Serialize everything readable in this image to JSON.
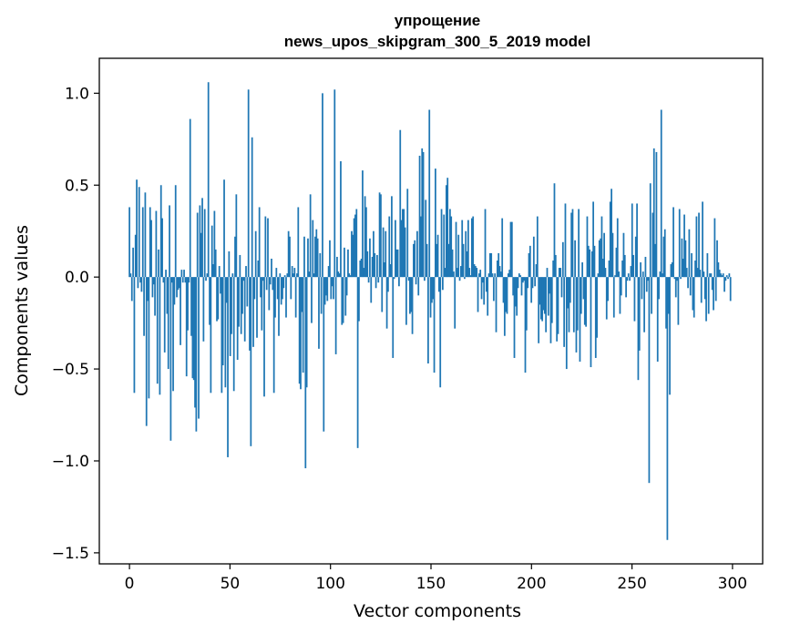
{
  "chart_data": {
    "type": "bar",
    "title": "упрощение",
    "subtitle": "news_upos_skipgram_300_5_2019 model",
    "xlabel": "Vector components",
    "ylabel": "Components values",
    "xlim": [
      -15,
      315
    ],
    "ylim": [
      -1.56,
      1.19
    ],
    "xticks": [
      0,
      50,
      100,
      150,
      200,
      250,
      300
    ],
    "xtick_labels": [
      "0",
      "50",
      "100",
      "150",
      "200",
      "250",
      "300"
    ],
    "yticks": [
      -1.5,
      -1.0,
      -0.5,
      0.0,
      0.5,
      1.0
    ],
    "ytick_labels": [
      "−1.5",
      "−1.0",
      "−0.5",
      "0.0",
      "0.5",
      "1.0"
    ],
    "bar_color": "#1f77b4",
    "grid": false,
    "series": [
      {
        "name": "упрощение",
        "values": [
          0.38,
          0.02,
          -0.13,
          0.16,
          -0.63,
          0.23,
          0.53,
          -0.06,
          0.49,
          -0.03,
          -0.08,
          0.38,
          -0.32,
          0.46,
          -0.81,
          -0.13,
          -0.66,
          0.38,
          0.31,
          -0.11,
          -0.04,
          -0.21,
          0.36,
          -0.58,
          0.15,
          -0.64,
          0.5,
          0.32,
          -0.03,
          -0.41,
          0.04,
          -0.2,
          -0.5,
          0.39,
          -0.89,
          -0.03,
          -0.62,
          -0.15,
          0.5,
          -0.11,
          -0.07,
          -0.06,
          -0.37,
          0.04,
          -0.03,
          0.04,
          -0.03,
          -0.54,
          -0.29,
          -0.03,
          0.86,
          -0.32,
          -0.55,
          -0.56,
          -0.71,
          -0.84,
          0.35,
          -0.77,
          0.39,
          0.24,
          0.43,
          -0.35,
          0.37,
          -0.02,
          0.02,
          1.06,
          -0.26,
          -0.63,
          0.28,
          0.07,
          0.36,
          0.15,
          -0.24,
          -0.23,
          0.06,
          -0.09,
          -0.63,
          -0.48,
          0.53,
          -0.6,
          -0.14,
          -0.98,
          0.14,
          -0.43,
          -0.31,
          0.02,
          -0.62,
          0.22,
          0.45,
          -0.45,
          -0.27,
          0.12,
          -0.31,
          -0.2,
          -0.02,
          -0.35,
          0.06,
          -0.16,
          1.02,
          -0.4,
          -0.92,
          0.76,
          -0.38,
          -0.12,
          0.25,
          -0.33,
          0.09,
          0.38,
          -0.11,
          -0.29,
          -0.02,
          -0.65,
          0.33,
          -0.07,
          0.32,
          -0.18,
          -0.04,
          0.1,
          -0.07,
          -0.63,
          -0.22,
          0.05,
          -0.12,
          -0.32,
          0.02,
          -0.15,
          -0.12,
          -0.06,
          0.01,
          -0.22,
          0.02,
          0.25,
          0.22,
          -0.12,
          0.06,
          0.02,
          0.05,
          -0.22,
          0.02,
          0.38,
          -0.58,
          -0.61,
          -0.19,
          -0.52,
          0.22,
          -1.04,
          -0.6,
          0.21,
          0.03,
          0.45,
          -0.25,
          0.31,
          0.02,
          0.22,
          0.26,
          0.21,
          -0.39,
          0.13,
          -0.2,
          1.0,
          -0.84,
          -0.15,
          -0.1,
          -0.13,
          0.06,
          0.2,
          -0.12,
          -0.05,
          -0.12,
          1.02,
          -0.42,
          0.11,
          0.03,
          0.02,
          0.63,
          -0.26,
          -0.25,
          0.16,
          -0.21,
          -0.1,
          0.15,
          0.02,
          0.01,
          0.25,
          0.23,
          0.32,
          0.34,
          0.37,
          -0.93,
          -0.24,
          0.09,
          0.1,
          0.58,
          0.05,
          0.44,
          0.38,
          0.14,
          -0.03,
          0.21,
          -0.14,
          0.11,
          0.25,
          0.13,
          -0.06,
          0.12,
          -0.03,
          0.46,
          0.45,
          -0.19,
          0.27,
          0.08,
          0.25,
          -0.28,
          -0.08,
          0.33,
          0.07,
          0.44,
          -0.44,
          -0.01,
          0.31,
          0.15,
          0.15,
          -0.05,
          0.8,
          0.31,
          0.37,
          0.37,
          0.27,
          -0.26,
          0.48,
          -0.02,
          -0.2,
          -0.19,
          -0.31,
          0.18,
          0.2,
          -0.04,
          0.25,
          -0.1,
          0.66,
          0.33,
          0.7,
          0.68,
          -0.02,
          0.42,
          0.18,
          -0.47,
          0.91,
          -0.22,
          -0.14,
          -0.12,
          -0.52,
          0.59,
          0.18,
          0.23,
          -0.08,
          -0.6,
          0.37,
          -0.07,
          0.34,
          0.05,
          0.5,
          0.54,
          0.18,
          0.37,
          0.33,
          0.15,
          0.03,
          -0.28,
          0.3,
          0.05,
          0.23,
          -0.02,
          0.06,
          0.31,
          0.18,
          -0.01,
          0.25,
          0.14,
          0.31,
          0.05,
          0.01,
          0.32,
          0.33,
          0.07,
          0.06,
          0.05,
          -0.19,
          0.02,
          0.04,
          -0.12,
          -0.03,
          -0.15,
          0.37,
          -0.08,
          -0.21,
          0.02,
          0.13,
          0.13,
          0.02,
          -0.13,
          0.02,
          -0.3,
          0.09,
          0.13,
          0.06,
          0.03,
          0.32,
          -0.14,
          -0.32,
          -0.19,
          -0.2,
          0.02,
          0.04,
          0.3,
          0.3,
          -0.1,
          -0.44,
          -0.16,
          -0.21,
          -0.06,
          0.02,
          0.01,
          -0.1,
          -0.03,
          -0.02,
          -0.52,
          -0.29,
          -0.06,
          0.13,
          0.17,
          -0.14,
          -0.06,
          0.22,
          -0.05,
          0.07,
          0.33,
          -0.36,
          -0.15,
          -0.23,
          -0.24,
          -0.18,
          -0.2,
          -0.3,
          0.05,
          -0.21,
          -0.09,
          -0.36,
          -0.25,
          0.09,
          0.51,
          0.12,
          -0.35,
          -0.31,
          0.05,
          0.05,
          -0.11,
          0.19,
          -0.38,
          0.4,
          -0.5,
          -0.17,
          -0.3,
          -0.14,
          0.35,
          0.37,
          -0.3,
          0.2,
          -0.41,
          -0.29,
          0.37,
          -0.46,
          -0.2,
          0.08,
          -0.12,
          -0.26,
          -0.27,
          0.33,
          0.17,
          0.15,
          -0.49,
          0.14,
          0.41,
          0.17,
          -0.44,
          -0.33,
          0.02,
          0.2,
          0.21,
          0.33,
          0.1,
          0.24,
          0.05,
          -0.23,
          -0.13,
          0.09,
          0.41,
          0.48,
          0.24,
          -0.22,
          0.01,
          0.16,
          0.32,
          0.03,
          -0.2,
          -0.1,
          0.09,
          0.24,
          0.12,
          -0.11,
          -0.02,
          0.02,
          -0.02,
          0.06,
          0.4,
          0.12,
          -0.24,
          0.22,
          0.4,
          -0.56,
          -0.4,
          0.08,
          -0.12,
          0.03,
          -0.3,
          0.11,
          -0.08,
          -0.02,
          -1.12,
          0.51,
          -0.2,
          0.35,
          0.7,
          0.18,
          0.68,
          -0.46,
          -0.12,
          0.03,
          0.91,
          0.02,
          0.22,
          0.26,
          -0.28,
          -1.43,
          -0.2,
          -0.64,
          0.07,
          0.08,
          0.38,
          -0.01,
          -0.11,
          -0.02,
          -0.26,
          0.37,
          -0.01,
          0.21,
          0.1,
          0.34,
          0.2,
          0.05,
          -0.06,
          0.26,
          -0.1,
          0.13,
          -0.18,
          -0.22,
          0.09,
          0.33,
          0.05,
          0.35,
          0.04,
          -0.14,
          0.41,
          0.03,
          -0.12,
          -0.24,
          0.13,
          -0.2,
          0.02,
          0.02,
          -0.07,
          -0.18,
          0.32,
          -0.13,
          0.2,
          0.08,
          0.04,
          0.02,
          0.01,
          0.02,
          -0.08,
          -0.02,
          0.01,
          -0.01,
          0.02,
          -0.13
        ]
      }
    ]
  }
}
